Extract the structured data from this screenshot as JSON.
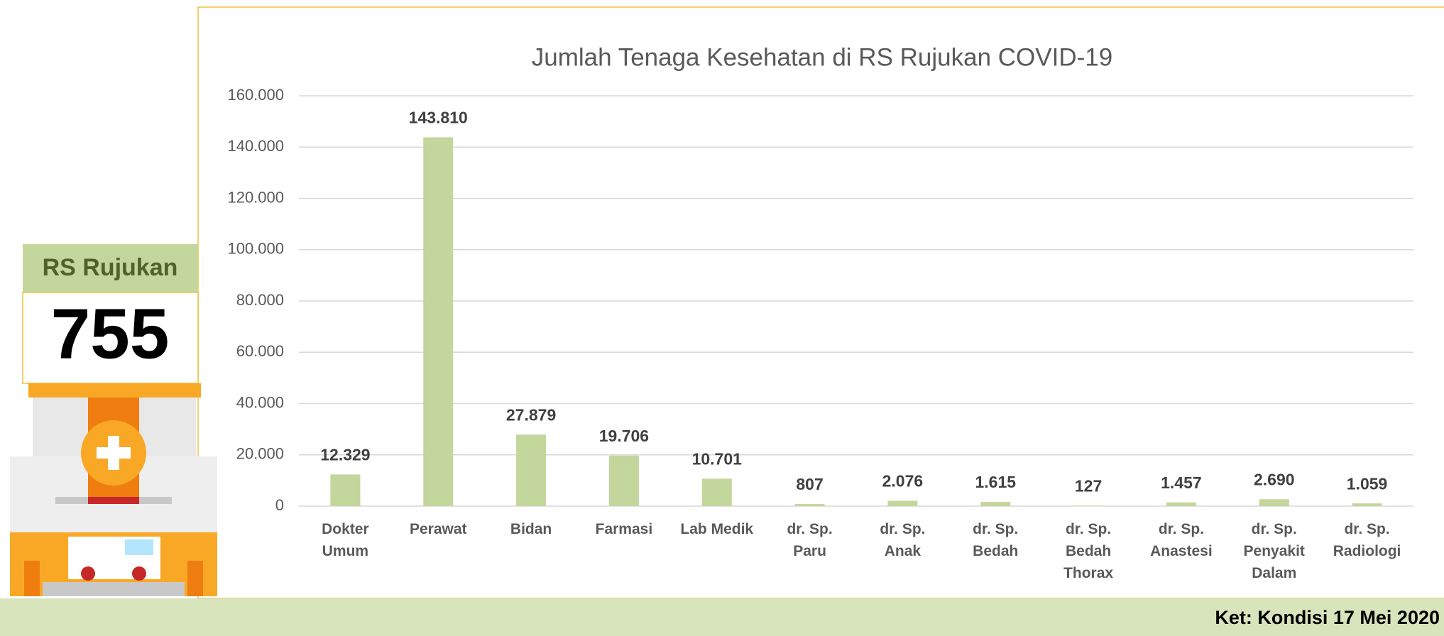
{
  "chart_data": {
    "type": "bar",
    "title": "Jumlah Tenaga Kesehatan di RS Rujukan COVID-19",
    "categories": [
      "Dokter Umum",
      "Perawat",
      "Bidan",
      "Farmasi",
      "Lab Medik",
      "dr. Sp. Paru",
      "dr. Sp. Anak",
      "dr. Sp. Bedah",
      "dr. Sp. Bedah Thorax",
      "dr. Sp. Anastesi",
      "dr. Sp. Penyakit Dalam",
      "dr. Sp. Radiologi"
    ],
    "values": [
      12329,
      143810,
      27879,
      19706,
      10701,
      807,
      2076,
      1615,
      127,
      1457,
      2690,
      1059
    ],
    "value_labels": [
      "12.329",
      "143.810",
      "27.879",
      "19.706",
      "10.701",
      "807",
      "2.076",
      "1.615",
      "127",
      "1.457",
      "2.690",
      "1.059"
    ],
    "color": "#c3d69b",
    "ylim": [
      0,
      160000
    ],
    "yticks": [
      0,
      {
        "value": 20000,
        "label": "20.000"
      },
      {
        "value": 40000,
        "label": "40.000"
      },
      {
        "value": 60000,
        "label": "60.000"
      },
      {
        "value": 80000,
        "label": "80.000"
      },
      {
        "value": 100000,
        "label": "100.000"
      },
      {
        "value": 120000,
        "label": "120.000"
      },
      {
        "value": 140000,
        "label": "140.000"
      },
      {
        "value": 160000,
        "label": "160.000"
      }
    ],
    "grid": true
  },
  "panel": {
    "label": "RS Rujukan",
    "count": "755"
  },
  "footer": {
    "note": "Ket: Kondisi 17 Mei 2020"
  }
}
